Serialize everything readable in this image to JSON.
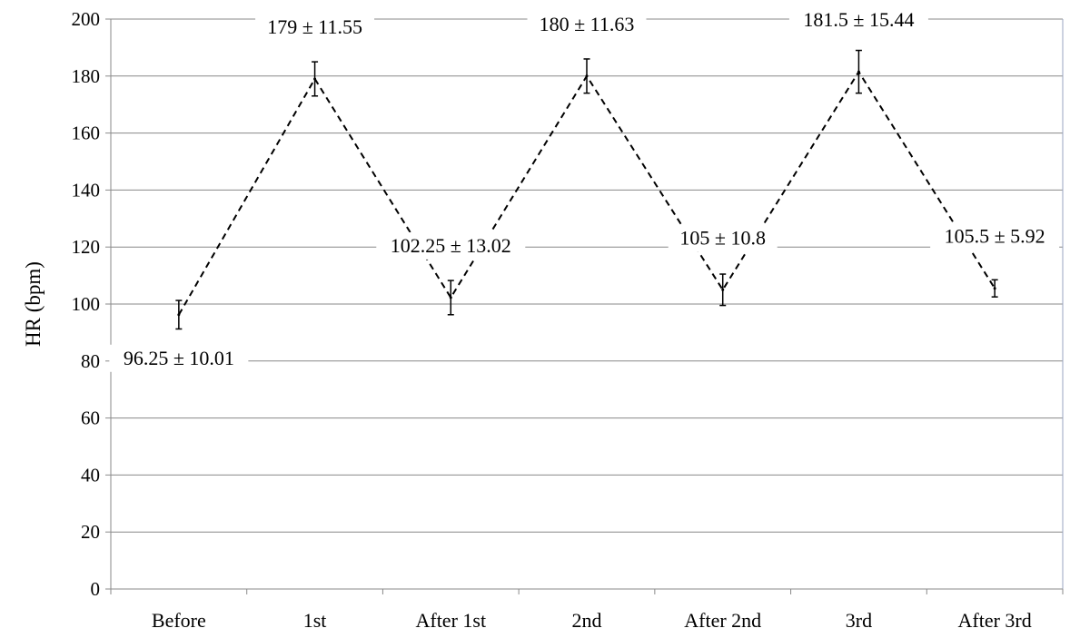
{
  "chart_data": {
    "type": "line",
    "categories": [
      "Before",
      "1st",
      "After 1st",
      "2nd",
      "After 2nd",
      "3rd",
      "After 3rd"
    ],
    "series": [
      {
        "values": [
          96.25,
          179,
          102.25,
          180,
          105,
          181.5,
          105.5
        ],
        "errors": [
          5,
          6,
          6,
          6,
          5.5,
          7.5,
          3
        ]
      }
    ],
    "data_labels": [
      "96.25 ± 10.01",
      "179 ± 11.55",
      "102.25 ± 13.02",
      "180 ± 11.63",
      "105 ± 10.8",
      "181.5 ± 15.44",
      "105.5 ± 5.92"
    ],
    "ylabel": "HR (bpm)",
    "xlabel": "",
    "ylim": [
      0,
      200
    ],
    "yticks": [
      0,
      20,
      40,
      60,
      80,
      100,
      120,
      140,
      160,
      180,
      200
    ],
    "grid": true,
    "line_style": "dashed",
    "colors": {
      "line": "#000000",
      "grid": "#888888",
      "axis": "#8a8a8a",
      "plot_border": "#9aa6c0"
    }
  }
}
